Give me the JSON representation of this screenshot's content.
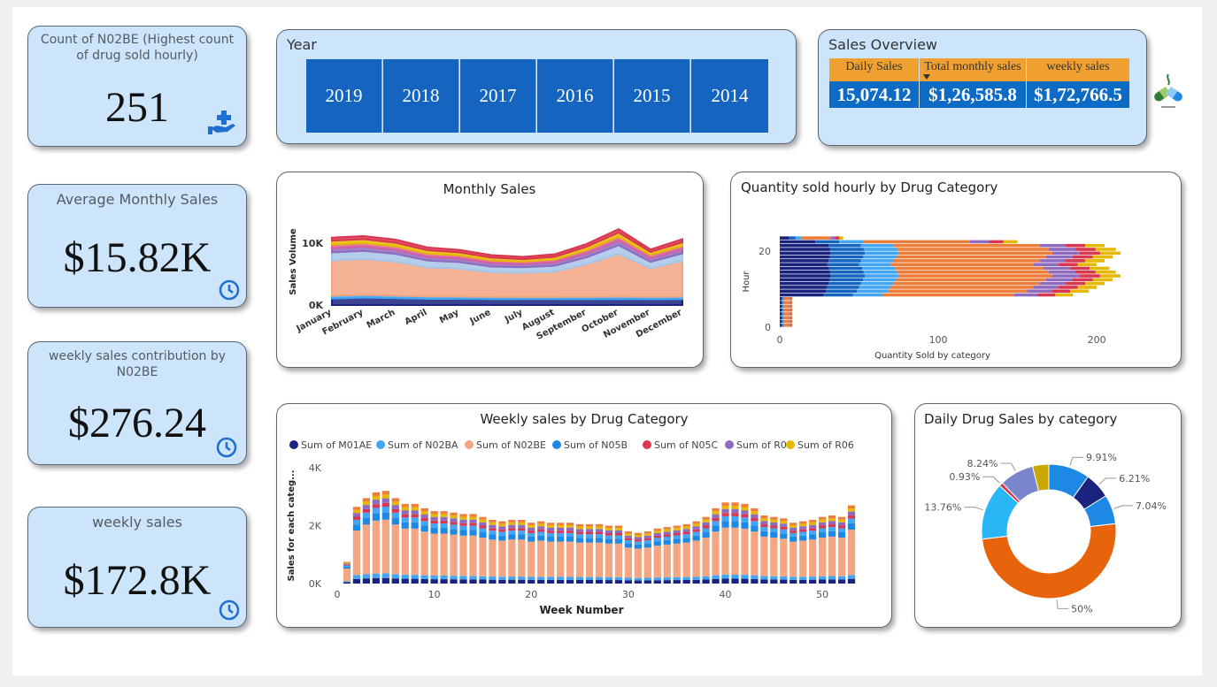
{
  "kpis": {
    "count_title": "Count of N02BE (Highest count of drug sold hourly)",
    "count_value": "251",
    "avg_title": "Average Monthly Sales",
    "avg_value": "$15.82K",
    "contrib_title": "weekly sales contribution by N02BE",
    "contrib_value": "$276.24",
    "weekly_title": "weekly sales",
    "weekly_value": "$172.8K"
  },
  "year_slicer": {
    "title": "Year",
    "years": [
      "2019",
      "2018",
      "2017",
      "2016",
      "2015",
      "2014"
    ]
  },
  "sales_overview": {
    "title": "Sales Overview",
    "headers": [
      "Daily Sales",
      "Total monthly sales",
      "weekly sales"
    ],
    "values": [
      "15,074.12",
      "$1,26,585.8",
      "$1,72,766.5"
    ]
  },
  "chart_data": [
    {
      "id": "monthly",
      "type": "area",
      "title": "Monthly Sales",
      "ylabel": "Sales Volume",
      "xlabel": "",
      "ylim": [
        0,
        14000
      ],
      "yticks": [
        "0K",
        "10K"
      ],
      "categories": [
        "January",
        "February",
        "March",
        "April",
        "May",
        "June",
        "July",
        "August",
        "September",
        "October",
        "November",
        "December"
      ],
      "series": [
        {
          "color": "#1a237e",
          "values": [
            1050,
            1200,
            1100,
            1000,
            1000,
            950,
            950,
            950,
            950,
            950,
            950,
            950
          ]
        },
        {
          "color": "#42a5f5",
          "values": [
            450,
            450,
            420,
            400,
            380,
            370,
            360,
            360,
            380,
            420,
            380,
            400
          ]
        },
        {
          "color": "#f4a582",
          "values": [
            5700,
            5800,
            5500,
            4700,
            4500,
            4000,
            3900,
            4100,
            5300,
            6900,
            4600,
            5800
          ]
        },
        {
          "color": "#a6c4e8",
          "values": [
            1300,
            1300,
            1250,
            1100,
            1050,
            900,
            900,
            950,
            1100,
            1400,
            1050,
            1200
          ]
        },
        {
          "color": "#8e6bbf",
          "values": [
            700,
            700,
            650,
            600,
            600,
            550,
            500,
            550,
            650,
            750,
            600,
            650
          ]
        },
        {
          "color": "#d95f9e",
          "values": [
            550,
            550,
            550,
            500,
            480,
            450,
            400,
            450,
            500,
            600,
            500,
            550
          ]
        },
        {
          "color": "#e6b800",
          "values": [
            650,
            650,
            600,
            550,
            500,
            450,
            400,
            450,
            550,
            700,
            500,
            600
          ]
        },
        {
          "color": "#d9364f",
          "values": [
            500,
            500,
            500,
            450,
            400,
            400,
            380,
            400,
            450,
            550,
            400,
            500
          ]
        }
      ]
    },
    {
      "id": "hourly",
      "type": "bar",
      "title": "Quantity sold hourly by Drug Category",
      "ylabel": "Hour",
      "xlabel": "Quantity Sold by category",
      "xlim": [
        0,
        215
      ],
      "xticks": [
        0,
        100,
        200
      ],
      "yticks": [
        0,
        20
      ],
      "hours": [
        0,
        1,
        2,
        3,
        4,
        5,
        6,
        7,
        8,
        9,
        10,
        11,
        12,
        13,
        14,
        15,
        16,
        17,
        18,
        19,
        20,
        21,
        22,
        23
      ],
      "totals": [
        8,
        8,
        8,
        8,
        8,
        8,
        8,
        8,
        185,
        195,
        200,
        205,
        210,
        215,
        212,
        208,
        200,
        205,
        210,
        215,
        212,
        205,
        150,
        40
      ],
      "segments": [
        {
          "color": "#1a237e",
          "share": 0.15
        },
        {
          "color": "#1565c0",
          "share": 0.1
        },
        {
          "color": "#42a5f5",
          "share": 0.1
        },
        {
          "color": "#ef7d3a",
          "share": 0.45
        },
        {
          "color": "#8e6bbf",
          "share": 0.08
        },
        {
          "color": "#d9364f",
          "share": 0.06
        },
        {
          "color": "#e6b800",
          "share": 0.06
        }
      ]
    },
    {
      "id": "weekly",
      "type": "bar",
      "title": "Weekly sales by Drug Category",
      "xlabel": "Week Number",
      "ylabel": "Sales for each categ...",
      "ylim": [
        0,
        4000
      ],
      "yticks": [
        "0K",
        "2K",
        "4K"
      ],
      "xticks": [
        0,
        10,
        20,
        30,
        40,
        50
      ],
      "legend": [
        "Sum of M01AE",
        "Sum of N02BA",
        "Sum of N02BE",
        "Sum of N05B",
        "Sum of N05C",
        "Sum of R03",
        "Sum of R06"
      ],
      "legend_colors": [
        "#1a237e",
        "#42a5f5",
        "#f4a582",
        "#1e88e5",
        "#d9364f",
        "#8e6bbf",
        "#e6b800"
      ],
      "legend_placement": "top",
      "weeks": [
        1,
        2,
        3,
        4,
        5,
        6,
        7,
        8,
        9,
        10,
        11,
        12,
        13,
        14,
        15,
        16,
        17,
        18,
        19,
        20,
        21,
        22,
        23,
        24,
        25,
        26,
        27,
        28,
        29,
        30,
        31,
        32,
        33,
        34,
        35,
        36,
        37,
        38,
        39,
        40,
        41,
        42,
        43,
        44,
        45,
        46,
        47,
        48,
        49,
        50,
        51,
        52,
        53
      ],
      "totals": [
        750,
        2650,
        2950,
        3150,
        3200,
        2950,
        2750,
        2750,
        2600,
        2500,
        2500,
        2450,
        2400,
        2400,
        2300,
        2200,
        2150,
        2200,
        2200,
        2100,
        2150,
        2100,
        2100,
        2100,
        2050,
        2050,
        2050,
        2000,
        2000,
        1800,
        1750,
        1800,
        1900,
        1950,
        2000,
        2050,
        2150,
        2300,
        2600,
        2800,
        2800,
        2750,
        2600,
        2350,
        2300,
        2250,
        2100,
        2150,
        2200,
        2300,
        2350,
        2300,
        2700
      ],
      "segments": [
        {
          "color": "#1a237e",
          "share": 0.06
        },
        {
          "color": "#42a5f5",
          "share": 0.05
        },
        {
          "color": "#f4a582",
          "share": 0.58
        },
        {
          "color": "#1e88e5",
          "share": 0.08
        },
        {
          "color": "#42a5f5",
          "share": 0.06
        },
        {
          "color": "#d9364f",
          "share": 0.04
        },
        {
          "color": "#8e6bbf",
          "share": 0.05
        },
        {
          "color": "#e6b800",
          "share": 0.04
        },
        {
          "color": "#ef7d3a",
          "share": 0.04
        }
      ]
    },
    {
      "id": "daily",
      "type": "pie",
      "title": "Daily Drug Sales by category",
      "slices": [
        {
          "label": "9.91%",
          "value": 9.91,
          "color": "#1e88e5"
        },
        {
          "label": "6.21%",
          "value": 6.21,
          "color": "#1a237e"
        },
        {
          "label": "7.04%",
          "value": 7.04,
          "color": "#1e88e5"
        },
        {
          "label": "50%",
          "value": 50,
          "color": "#e8640c"
        },
        {
          "label": "13.76%",
          "value": 13.76,
          "color": "#29b6f6"
        },
        {
          "label": "0.93%",
          "value": 0.93,
          "color": "#d9364f"
        },
        {
          "label": "8.24%",
          "value": 8.24,
          "color": "#7986cb"
        },
        {
          "label": "",
          "value": 3.91,
          "color": "#c9a800"
        }
      ]
    }
  ],
  "icons": {
    "hand": "hand-plus-icon",
    "clock": "clock-icon",
    "logo": "pharmacy-logo-icon",
    "sort": "sort-down-icon"
  }
}
